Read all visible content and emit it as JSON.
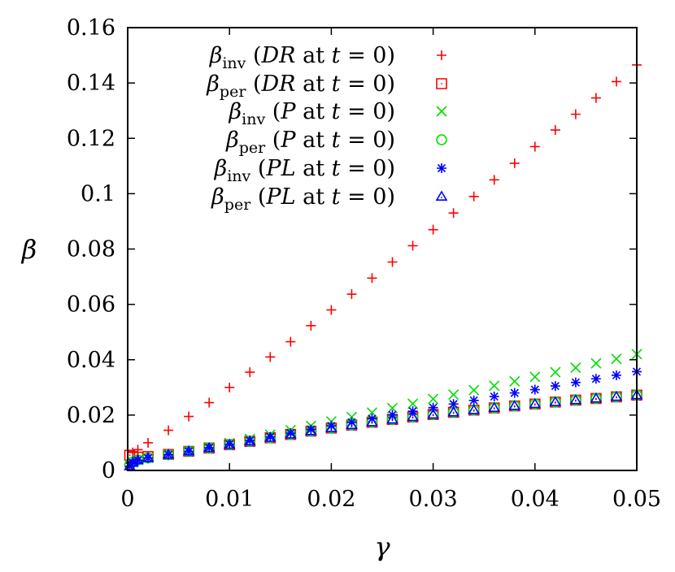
{
  "chart_data": {
    "type": "scatter",
    "xlabel": "γ",
    "ylabel": "β",
    "xlim": [
      0,
      0.05
    ],
    "ylim": [
      0,
      0.16
    ],
    "xticks": [
      "0",
      "0.01",
      "0.02",
      "0.03",
      "0.04",
      "0.05"
    ],
    "yticks": [
      "0",
      "0.02",
      "0.04",
      "0.06",
      "0.08",
      "0.1",
      "0.12",
      "0.14",
      "0.16"
    ],
    "grid": false,
    "legend_position": "top-left",
    "series": [
      {
        "name": "β_inv (DR at t = 0)",
        "legend": {
          "sym": "β",
          "sub": "inv",
          "open": "(",
          "var": "DR",
          "mid": " at ",
          "tvar": "t",
          "tail": " = 0)"
        },
        "marker": "plus",
        "color": "#ff0000",
        "x": [
          0.0005,
          0.001,
          0.002,
          0.004,
          0.006,
          0.008,
          0.01,
          0.012,
          0.014,
          0.016,
          0.018,
          0.02,
          0.022,
          0.024,
          0.026,
          0.028,
          0.03,
          0.032,
          0.034,
          0.036,
          0.038,
          0.04,
          0.042,
          0.044,
          0.046,
          0.048,
          0.05
        ],
        "y": [
          0.0065,
          0.0075,
          0.01,
          0.0145,
          0.0195,
          0.0245,
          0.03,
          0.0355,
          0.041,
          0.0465,
          0.0523,
          0.058,
          0.0637,
          0.0695,
          0.0753,
          0.0812,
          0.087,
          0.093,
          0.099,
          0.105,
          0.111,
          0.117,
          0.123,
          0.1287,
          0.1346,
          0.1405,
          0.1465
        ]
      },
      {
        "name": "β_per (DR at t = 0)",
        "legend": {
          "sym": "β",
          "sub": "per",
          "open": "(",
          "var": "DR",
          "mid": " at ",
          "tvar": "t",
          "tail": " = 0)"
        },
        "marker": "square",
        "color": "#ff0000",
        "x": [
          0.0002,
          0.0005,
          0.001,
          0.002,
          0.004,
          0.006,
          0.008,
          0.01,
          0.012,
          0.014,
          0.016,
          0.018,
          0.02,
          0.022,
          0.024,
          0.026,
          0.028,
          0.03,
          0.032,
          0.034,
          0.036,
          0.038,
          0.04,
          0.042,
          0.044,
          0.046,
          0.048,
          0.05
        ],
        "y": [
          0.0055,
          0.005,
          0.0048,
          0.005,
          0.0058,
          0.0069,
          0.0081,
          0.0093,
          0.0105,
          0.0118,
          0.013,
          0.0142,
          0.0153,
          0.0164,
          0.0174,
          0.0184,
          0.0193,
          0.0202,
          0.021,
          0.0218,
          0.0226,
          0.0233,
          0.024,
          0.0247,
          0.0254,
          0.026,
          0.0266,
          0.0272
        ]
      },
      {
        "name": "β_inv (P at t = 0)",
        "legend": {
          "sym": "β",
          "sub": "inv",
          "open": "(",
          "var": "P",
          "mid": " at ",
          "tvar": "t",
          "tail": " = 0)"
        },
        "marker": "cross",
        "color": "#00dd00",
        "x": [
          0.0002,
          0.0005,
          0.001,
          0.002,
          0.004,
          0.006,
          0.008,
          0.01,
          0.012,
          0.014,
          0.016,
          0.018,
          0.02,
          0.022,
          0.024,
          0.026,
          0.028,
          0.03,
          0.032,
          0.034,
          0.036,
          0.038,
          0.04,
          0.042,
          0.044,
          0.046,
          0.048,
          0.05
        ],
        "y": [
          0.002,
          0.003,
          0.0038,
          0.0045,
          0.0057,
          0.007,
          0.0084,
          0.0099,
          0.0114,
          0.0129,
          0.0145,
          0.0161,
          0.0177,
          0.0193,
          0.0209,
          0.0225,
          0.0241,
          0.0258,
          0.0274,
          0.029,
          0.0306,
          0.0322,
          0.0338,
          0.0355,
          0.0371,
          0.0387,
          0.0403,
          0.042
        ]
      },
      {
        "name": "β_per (P at t = 0)",
        "legend": {
          "sym": "β",
          "sub": "per",
          "open": "(",
          "var": "P",
          "mid": " at ",
          "tvar": "t",
          "tail": " = 0)"
        },
        "marker": "circle",
        "color": "#00dd00",
        "x": [
          0.0002,
          0.0005,
          0.001,
          0.002,
          0.004,
          0.006,
          0.008,
          0.01,
          0.012,
          0.014,
          0.016,
          0.018,
          0.02,
          0.022,
          0.024,
          0.026,
          0.028,
          0.03,
          0.032,
          0.034,
          0.036,
          0.038,
          0.04,
          0.042,
          0.044,
          0.046,
          0.048,
          0.05
        ],
        "y": [
          0.002,
          0.003,
          0.0038,
          0.0045,
          0.0057,
          0.0069,
          0.0081,
          0.0093,
          0.0105,
          0.0118,
          0.013,
          0.0142,
          0.0153,
          0.0164,
          0.0174,
          0.0184,
          0.0193,
          0.0202,
          0.021,
          0.0218,
          0.0226,
          0.0233,
          0.024,
          0.0247,
          0.0254,
          0.026,
          0.0266,
          0.0272
        ]
      },
      {
        "name": "β_inv (PL at t = 0)",
        "legend": {
          "sym": "β",
          "sub": "inv",
          "open": "(",
          "var": "PL",
          "mid": " at ",
          "tvar": "t",
          "tail": " = 0)"
        },
        "marker": "star",
        "color": "#0000ff",
        "x": [
          0.0002,
          0.0005,
          0.001,
          0.002,
          0.004,
          0.006,
          0.008,
          0.01,
          0.012,
          0.014,
          0.016,
          0.018,
          0.02,
          0.022,
          0.024,
          0.026,
          0.028,
          0.03,
          0.032,
          0.034,
          0.036,
          0.038,
          0.04,
          0.042,
          0.044,
          0.046,
          0.048,
          0.05
        ],
        "y": [
          0.0015,
          0.0028,
          0.0037,
          0.0045,
          0.0057,
          0.0069,
          0.0082,
          0.0095,
          0.0108,
          0.0121,
          0.0135,
          0.0148,
          0.0161,
          0.0174,
          0.0187,
          0.0201,
          0.0214,
          0.0227,
          0.024,
          0.0253,
          0.0267,
          0.028,
          0.0292,
          0.0305,
          0.0318,
          0.0331,
          0.0344,
          0.0357
        ]
      },
      {
        "name": "β_per (PL at t = 0)",
        "legend": {
          "sym": "β",
          "sub": "per",
          "open": "(",
          "var": "PL",
          "mid": " at ",
          "tvar": "t",
          "tail": " = 0)"
        },
        "marker": "triangle",
        "color": "#0000ff",
        "x": [
          0.0002,
          0.0005,
          0.001,
          0.002,
          0.004,
          0.006,
          0.008,
          0.01,
          0.012,
          0.014,
          0.016,
          0.018,
          0.02,
          0.022,
          0.024,
          0.026,
          0.028,
          0.03,
          0.032,
          0.034,
          0.036,
          0.038,
          0.04,
          0.042,
          0.044,
          0.046,
          0.048,
          0.05
        ],
        "y": [
          0.0015,
          0.0028,
          0.0037,
          0.0045,
          0.0057,
          0.0069,
          0.0081,
          0.0093,
          0.0105,
          0.0118,
          0.013,
          0.0142,
          0.0153,
          0.0164,
          0.0174,
          0.0184,
          0.0193,
          0.0202,
          0.021,
          0.0218,
          0.0226,
          0.0233,
          0.024,
          0.0247,
          0.0254,
          0.026,
          0.0266,
          0.0272
        ]
      }
    ]
  }
}
